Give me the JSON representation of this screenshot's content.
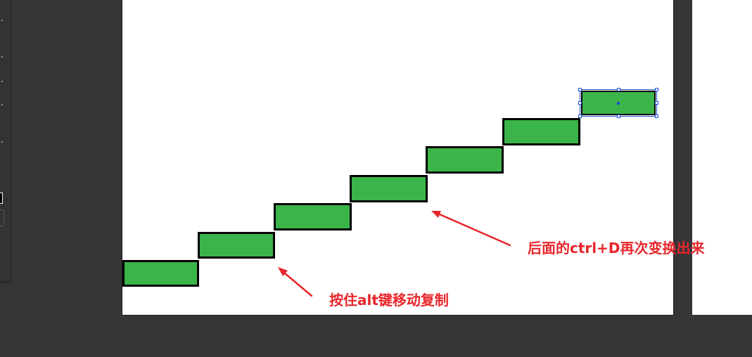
{
  "toolbar": {
    "icons": [
      "tool-flyout-icon",
      "tool-flyout-icon",
      "tool-flyout-icon",
      "tool-flyout-icon",
      "tool-flyout-icon"
    ],
    "fill_swatch_color": "#ffffff",
    "stroke_swatch_color": "#5a5a5a"
  },
  "artboard": {
    "background": "#ffffff",
    "shape_fill": "#3bb54a",
    "shape_stroke": "#000000",
    "selection_color": "#1f4fd6",
    "selected_shape": "step-7"
  },
  "annotations": {
    "alt_copy": "按住alt键移动复制",
    "ctrl_d_repeat": "后面的ctrl+D再次变换出来",
    "color": "#e8262b"
  }
}
